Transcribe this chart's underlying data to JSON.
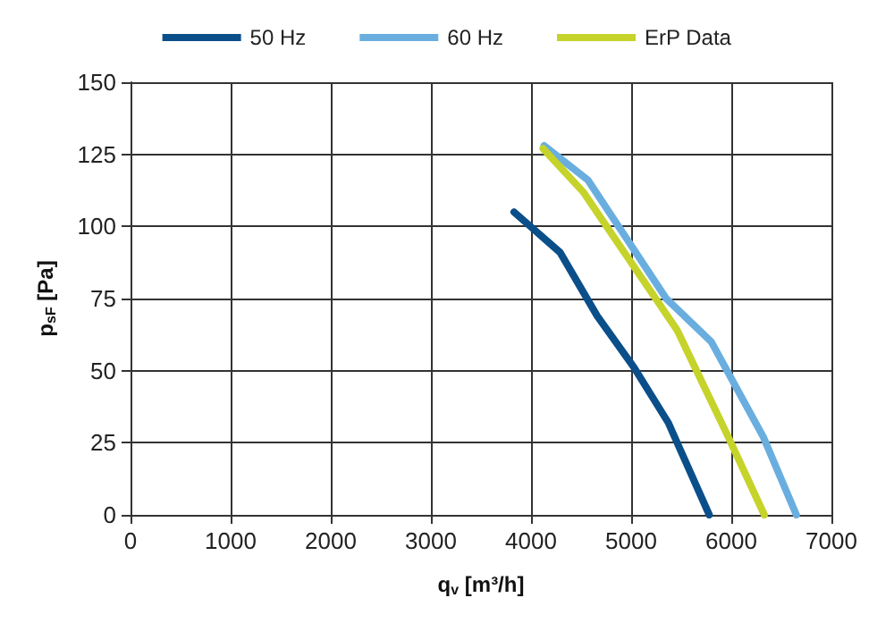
{
  "chart_data": {
    "type": "line",
    "xlabel": "q$_{v}$ [m³/h]",
    "ylabel": "p$_{sF}$ [Pa]",
    "xlim": [
      0,
      7000
    ],
    "xticks": [
      0,
      1000,
      2000,
      3000,
      4000,
      5000,
      6000,
      7000
    ],
    "ylim": [
      0,
      150
    ],
    "yticks": [
      0,
      25,
      50,
      75,
      100,
      125,
      150
    ],
    "grid": true,
    "legend": "top",
    "marker": "none",
    "line_style": "solid",
    "series": [
      {
        "name": "50 Hz",
        "color": "#0b4f8a",
        "x": [
          3830,
          4290,
          4660,
          5030,
          5370,
          5780
        ],
        "values": [
          105,
          91,
          69,
          51,
          32,
          0
        ]
      },
      {
        "name": "60 Hz",
        "color": "#6aaee0",
        "x": [
          4130,
          4570,
          5350,
          5800,
          6320,
          6650
        ],
        "values": [
          128,
          116,
          75,
          60,
          27,
          0
        ]
      },
      {
        "name": "ErP Data",
        "color": "#c5d32a",
        "x": [
          4120,
          4520,
          5460,
          5970,
          6330
        ],
        "values": [
          127,
          112,
          64,
          27,
          0
        ]
      }
    ]
  }
}
